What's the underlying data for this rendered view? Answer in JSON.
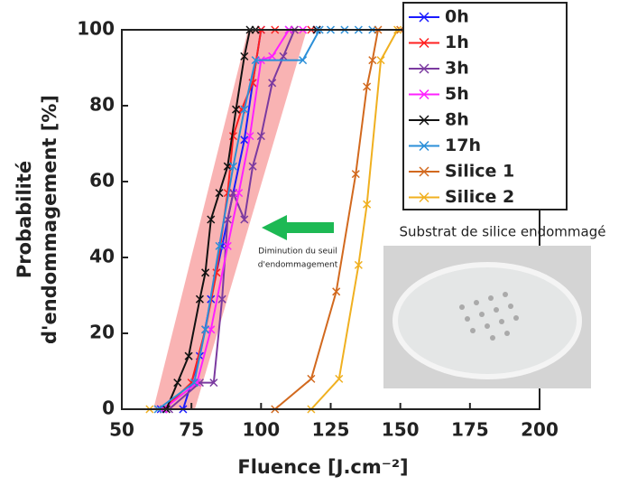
{
  "chart_data": {
    "type": "line",
    "xlabel": "Fluence [J.cm⁻²]",
    "ylabel": [
      "Probabilité",
      "d'endommagement [%]"
    ],
    "annotation": [
      "Diminution du seuil",
      "d'endommagement"
    ],
    "inset_title": "Substrat de silice endommagé",
    "xlim": [
      50,
      200
    ],
    "ylim": [
      0,
      100
    ],
    "xticks": [
      50,
      75,
      100,
      125,
      150,
      175,
      200
    ],
    "yticks": [
      0,
      20,
      40,
      60,
      80,
      100
    ],
    "legend": "upper right",
    "series": [
      {
        "name": "0h",
        "color": "#1a1aff",
        "x": [
          64,
          72,
          78,
          82,
          86,
          90,
          94,
          97,
          100,
          110,
          120
        ],
        "values": [
          0,
          0,
          14,
          29,
          43,
          57,
          71,
          86,
          100,
          100,
          100
        ]
      },
      {
        "name": "1h",
        "color": "#ff2020",
        "x": [
          65,
          75,
          80,
          84,
          88,
          90,
          93,
          97,
          100,
          105,
          112,
          118
        ],
        "values": [
          0,
          7,
          21,
          36,
          57,
          72,
          79,
          86,
          100,
          100,
          100,
          100
        ]
      },
      {
        "name": "3h",
        "color": "#7b3aa0",
        "x": [
          67,
          78,
          83,
          86,
          88,
          90,
          94,
          97,
          100,
          104,
          108,
          112
        ],
        "values": [
          0,
          7,
          7,
          29,
          50,
          57,
          50,
          64,
          72,
          86,
          93,
          100
        ]
      },
      {
        "name": "5h",
        "color": "#ff20ff",
        "x": [
          65,
          77,
          82,
          88,
          92,
          96,
          100,
          104,
          110,
          115
        ],
        "values": [
          0,
          7,
          21,
          43,
          57,
          72,
          92,
          93,
          100,
          100
        ]
      },
      {
        "name": "8h",
        "color": "#111111",
        "x": [
          66,
          70,
          74,
          78,
          80,
          82,
          85,
          88,
          91,
          94,
          96,
          98,
          120
        ],
        "values": [
          0,
          7,
          14,
          29,
          36,
          50,
          57,
          64,
          79,
          93,
          100,
          100,
          100
        ]
      },
      {
        "name": "17h",
        "color": "#2b8fd8",
        "x": [
          63,
          76,
          80,
          85,
          90,
          94,
          98,
          115,
          121,
          125,
          130,
          135,
          140
        ],
        "values": [
          0,
          7,
          21,
          43,
          64,
          79,
          92,
          92,
          100,
          100,
          100,
          100,
          100
        ]
      },
      {
        "name": "Silice 1",
        "color": "#d2691e",
        "x": [
          105,
          118,
          127,
          134,
          138,
          140,
          142,
          150
        ],
        "values": [
          0,
          8,
          31,
          62,
          85,
          92,
          100,
          100
        ]
      },
      {
        "name": "Silice 2",
        "color": "#f0b020",
        "x": [
          60,
          118,
          128,
          135,
          138,
          143,
          149,
          160,
          170
        ],
        "values": [
          0,
          0,
          8,
          38,
          54,
          92,
          100,
          100,
          100
        ]
      }
    ]
  }
}
